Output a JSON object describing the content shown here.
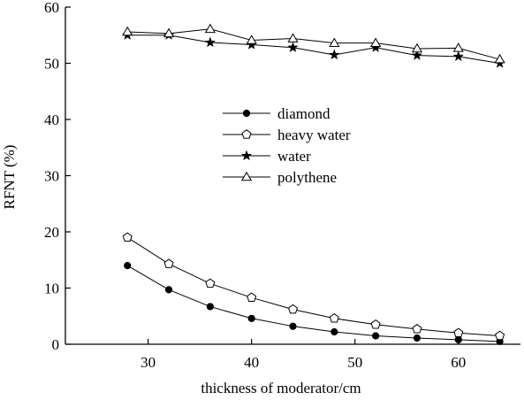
{
  "chart_data": {
    "type": "line",
    "title": "",
    "xlabel": "thickness of moderator/cm",
    "ylabel": "RFNT (%)",
    "xlim": [
      22,
      66
    ],
    "ylim": [
      0,
      60
    ],
    "xticks": [
      30,
      40,
      50,
      60
    ],
    "yticks": [
      0,
      10,
      20,
      30,
      40,
      50,
      60
    ],
    "grid": false,
    "legend_position": "center",
    "series": [
      {
        "name": "diamond",
        "marker": "filled-circle",
        "x": [
          28,
          32,
          36,
          40,
          44,
          48,
          52,
          56,
          60,
          64
        ],
        "y": [
          14,
          9.7,
          6.7,
          4.6,
          3.2,
          2.2,
          1.5,
          1.1,
          0.8,
          0.5
        ]
      },
      {
        "name": "heavy water",
        "marker": "open-pentagon",
        "x": [
          28,
          32,
          36,
          40,
          44,
          48,
          52,
          56,
          60,
          64
        ],
        "y": [
          19,
          14.3,
          10.8,
          8.3,
          6.2,
          4.6,
          3.5,
          2.7,
          2,
          1.5
        ]
      },
      {
        "name": "water",
        "marker": "filled-star",
        "x": [
          28,
          32,
          36,
          40,
          44,
          48,
          52,
          56,
          60,
          64
        ],
        "y": [
          55,
          55,
          53.7,
          53.3,
          52.8,
          51.5,
          52.8,
          51.4,
          51.2,
          50
        ]
      },
      {
        "name": "polythene",
        "marker": "open-triangle",
        "x": [
          28,
          32,
          36,
          40,
          44,
          48,
          52,
          56,
          60,
          64
        ],
        "y": [
          55.6,
          55.3,
          56.1,
          54.1,
          54.4,
          53.6,
          53.6,
          52.6,
          52.7,
          50.7
        ]
      }
    ]
  }
}
